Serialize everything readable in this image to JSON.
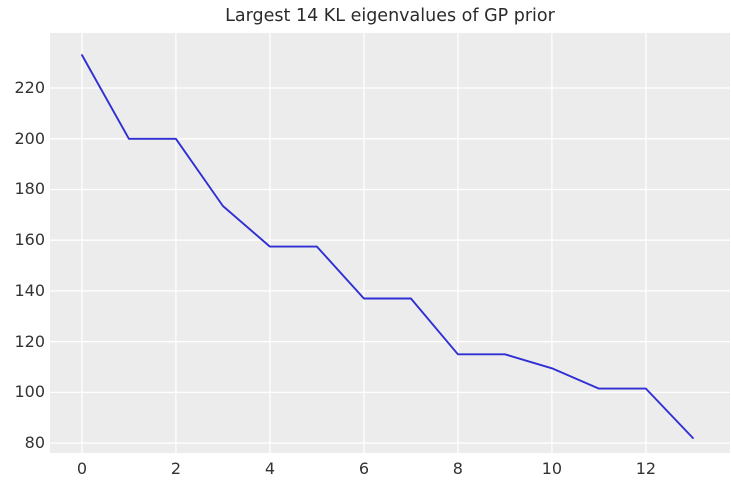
{
  "chart_data": {
    "type": "line",
    "title": "Largest 14 KL eigenvalues of GP prior",
    "xlabel": "",
    "ylabel": "",
    "x": [
      0,
      1,
      2,
      3,
      4,
      5,
      6,
      7,
      8,
      9,
      10,
      11,
      12,
      13
    ],
    "y": [
      233,
      200,
      200,
      173.5,
      157.5,
      157.5,
      137,
      137,
      115,
      115,
      109.5,
      101.5,
      101.5,
      82
    ],
    "xticks": [
      0,
      2,
      4,
      6,
      8,
      10,
      12
    ],
    "yticks": [
      80,
      100,
      120,
      140,
      160,
      180,
      200,
      220
    ],
    "xlim": [
      -0.68,
      13.79
    ],
    "ylim": [
      76.1,
      241.7
    ],
    "grid": true,
    "legend": false,
    "colors": {
      "line": "#2f2fd3",
      "grid": "#ffffff",
      "plot_background": "#ececec",
      "figure_background": "#ffffff",
      "title_text": "#2b2b2b",
      "tick_text": "#333333"
    }
  }
}
